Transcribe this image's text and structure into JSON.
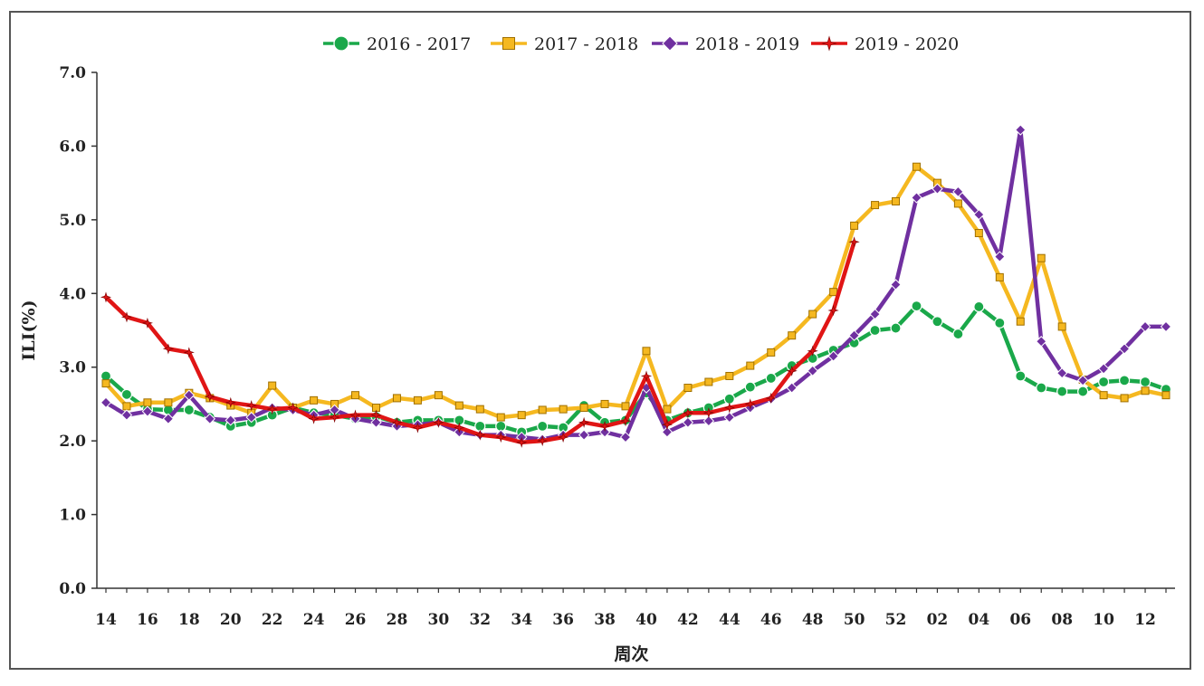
{
  "chart_data": {
    "type": "line",
    "title": "",
    "xlabel": "周次",
    "ylabel": "ILI(%)",
    "ylim": [
      0,
      7
    ],
    "yticks": [
      "0.0",
      "1.0",
      "2.0",
      "3.0",
      "4.0",
      "5.0",
      "6.0",
      "7.0"
    ],
    "categories": [
      "14",
      "15",
      "16",
      "17",
      "18",
      "19",
      "20",
      "21",
      "22",
      "23",
      "24",
      "25",
      "26",
      "27",
      "28",
      "29",
      "30",
      "31",
      "32",
      "33",
      "34",
      "35",
      "36",
      "37",
      "38",
      "39",
      "40",
      "41",
      "42",
      "43",
      "44",
      "45",
      "46",
      "47",
      "48",
      "49",
      "50",
      "51",
      "52",
      "01",
      "02",
      "03",
      "04",
      "05",
      "06",
      "07",
      "08",
      "09",
      "10",
      "11",
      "12",
      "13"
    ],
    "xtick_labels": [
      "14",
      "16",
      "18",
      "20",
      "22",
      "24",
      "26",
      "28",
      "30",
      "32",
      "34",
      "36",
      "38",
      "40",
      "42",
      "44",
      "46",
      "48",
      "50",
      "52",
      "02",
      "04",
      "06",
      "08",
      "10",
      "12"
    ],
    "legend_position": "top",
    "grid": false,
    "series": [
      {
        "name": "2016 - 2017",
        "color": "#1aa84a",
        "marker": "circle",
        "values": [
          2.88,
          2.63,
          2.43,
          2.42,
          2.42,
          2.32,
          2.2,
          2.25,
          2.35,
          2.45,
          2.38,
          2.35,
          2.3,
          2.33,
          2.25,
          2.28,
          2.28,
          2.28,
          2.2,
          2.2,
          2.12,
          2.2,
          2.18,
          2.48,
          2.25,
          2.28,
          2.65,
          2.28,
          2.38,
          2.45,
          2.57,
          2.73,
          2.85,
          3.02,
          3.12,
          3.23,
          3.33,
          3.5,
          3.53,
          3.83,
          3.62,
          3.45,
          3.82,
          3.6,
          2.88,
          2.72,
          2.67,
          2.67,
          2.8,
          2.82,
          2.8,
          2.7
        ]
      },
      {
        "name": "2017 - 2018",
        "color": "#f5b820",
        "marker": "square",
        "values": [
          2.78,
          2.47,
          2.52,
          2.52,
          2.65,
          2.58,
          2.48,
          2.38,
          2.75,
          2.45,
          2.55,
          2.5,
          2.62,
          2.45,
          2.58,
          2.55,
          2.62,
          2.48,
          2.43,
          2.32,
          2.35,
          2.42,
          2.43,
          2.45,
          2.5,
          2.47,
          3.22,
          2.43,
          2.72,
          2.8,
          2.88,
          3.02,
          3.2,
          3.43,
          3.72,
          4.02,
          4.92,
          5.2,
          5.25,
          5.72,
          5.5,
          5.22,
          4.82,
          4.22,
          3.62,
          4.48,
          3.55,
          2.83,
          2.62,
          2.58,
          2.68,
          2.62
        ]
      },
      {
        "name": "2018 - 2019",
        "color": "#7030a0",
        "marker": "diamond",
        "values": [
          2.52,
          2.35,
          2.4,
          2.3,
          2.62,
          2.3,
          2.28,
          2.32,
          2.45,
          2.42,
          2.35,
          2.42,
          2.3,
          2.25,
          2.2,
          2.22,
          2.25,
          2.12,
          2.08,
          2.08,
          2.05,
          2.02,
          2.08,
          2.08,
          2.12,
          2.05,
          2.72,
          2.12,
          2.25,
          2.27,
          2.32,
          2.45,
          2.57,
          2.72,
          2.95,
          3.15,
          3.43,
          3.72,
          4.12,
          5.3,
          5.42,
          5.38,
          5.07,
          4.5,
          6.22,
          3.35,
          2.92,
          2.82,
          2.98,
          3.25,
          3.55,
          3.55
        ]
      },
      {
        "name": "2019 - 2020",
        "color": "#e01515",
        "marker": "star",
        "values": [
          3.95,
          3.68,
          3.6,
          3.25,
          3.2,
          2.6,
          2.52,
          2.48,
          2.43,
          2.45,
          2.3,
          2.32,
          2.35,
          2.35,
          2.25,
          2.18,
          2.25,
          2.18,
          2.08,
          2.05,
          1.98,
          2.0,
          2.05,
          2.25,
          2.2,
          2.27,
          2.88,
          2.22,
          2.38,
          2.38,
          2.45,
          2.5,
          2.58,
          2.95,
          3.22,
          3.77,
          4.7,
          null,
          null,
          null,
          null,
          null,
          null,
          null,
          null,
          null,
          null,
          null,
          null,
          null,
          null,
          null
        ]
      }
    ]
  }
}
